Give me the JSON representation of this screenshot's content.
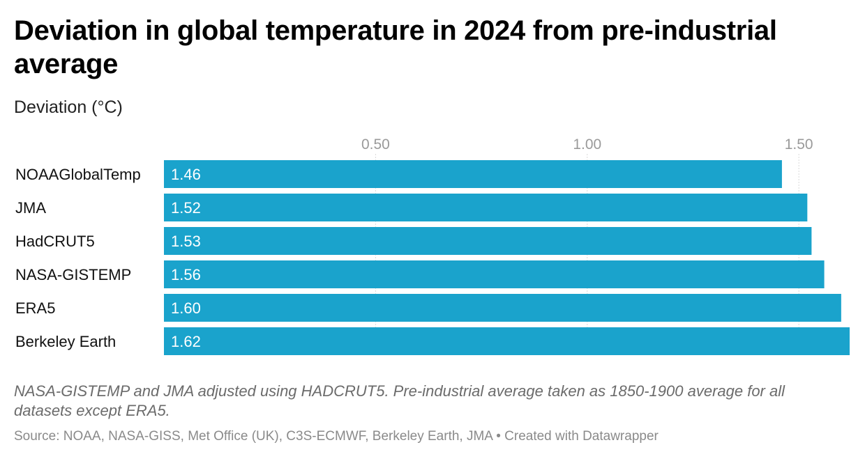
{
  "chart_data": {
    "type": "bar",
    "orientation": "horizontal",
    "title": "Deviation in global temperature in 2024 from pre-industrial average",
    "ylabel": "Deviation (°C)",
    "categories": [
      "NOAAGlobalTemp",
      "JMA",
      "HadCRUT5",
      "NASA-GISTEMP",
      "ERA5",
      "Berkeley Earth"
    ],
    "values": [
      1.46,
      1.52,
      1.53,
      1.56,
      1.6,
      1.62
    ],
    "value_labels": [
      "1.46",
      "1.52",
      "1.53",
      "1.56",
      "1.60",
      "1.62"
    ],
    "xticks": [
      0.5,
      1.0,
      1.5
    ],
    "xtick_labels": [
      "0.50",
      "1.00",
      "1.50"
    ],
    "xlim": [
      0,
      1.62
    ],
    "grid": "vertical",
    "bar_color": "#1aa3cc",
    "value_label_color": "#ffffff"
  },
  "notes": {
    "text": "NASA-GISTEMP and JMA adjusted using HADCRUT5. Pre-industrial average taken as 1850-1900 average for all datasets except ERA5.",
    "source": "Source: NOAA, NASA-GISS, Met Office (UK), C3S-ECMWF, Berkeley Earth, JMA • Created with Datawrapper"
  }
}
